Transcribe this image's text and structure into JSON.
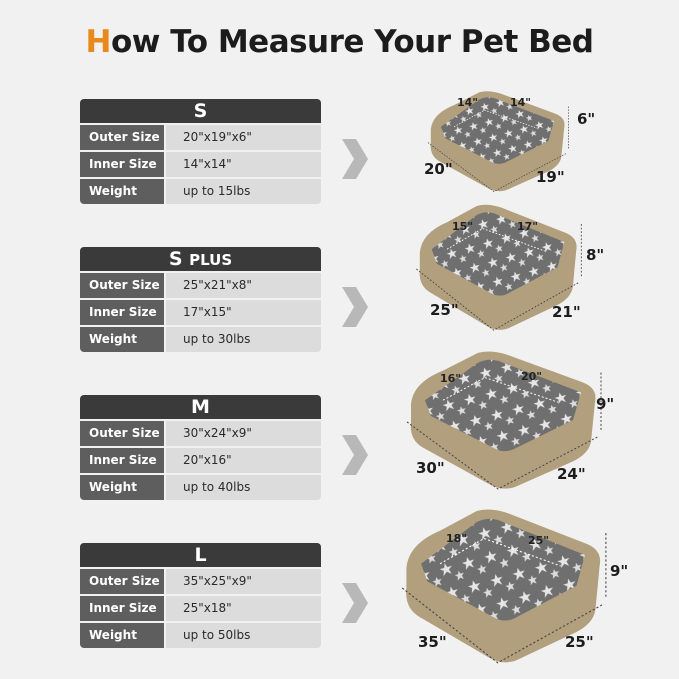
{
  "title": {
    "first_letter": "H",
    "rest": "ow To Measure Your Pet Bed"
  },
  "colors": {
    "accent": "#e8891c",
    "header": "#3a3a3a",
    "label_cell": "#5e5e5e",
    "value_cell": "#dcdcdc",
    "bed_outer": "#b19f7e",
    "bed_inner": "#6f6f6f"
  },
  "sizes": [
    {
      "name": "S",
      "suffix": "",
      "outer": "20\"x19\"x6\"",
      "inner": "14\"x14\"",
      "weight": "up to 15lbs",
      "dims": {
        "inner_a": "14\"",
        "inner_b": "14\"",
        "height": "6\"",
        "length": "20\"",
        "width": "19\""
      }
    },
    {
      "name": "S",
      "suffix": "PLUS",
      "outer": "25\"x21\"x8\"",
      "inner": "17\"x15\"",
      "weight": "up to 30lbs",
      "dims": {
        "inner_a": "15\"",
        "inner_b": "17\"",
        "height": "8\"",
        "length": "25\"",
        "width": "21\""
      }
    },
    {
      "name": "M",
      "suffix": "",
      "outer": "30\"x24\"x9\"",
      "inner": "20\"x16\"",
      "weight": "up to 40lbs",
      "dims": {
        "inner_a": "16\"",
        "inner_b": "20\"",
        "height": "9\"",
        "length": "30\"",
        "width": "24\""
      }
    },
    {
      "name": "L",
      "suffix": "",
      "outer": "35\"x25\"x9\"",
      "inner": "25\"x18\"",
      "weight": "up to 50lbs",
      "dims": {
        "inner_a": "18\"",
        "inner_b": "25\"",
        "height": "9\"",
        "length": "35\"",
        "width": "25\""
      }
    }
  ],
  "labels": {
    "outer": "Outer Size",
    "inner": "Inner Size",
    "weight": "Weight"
  }
}
